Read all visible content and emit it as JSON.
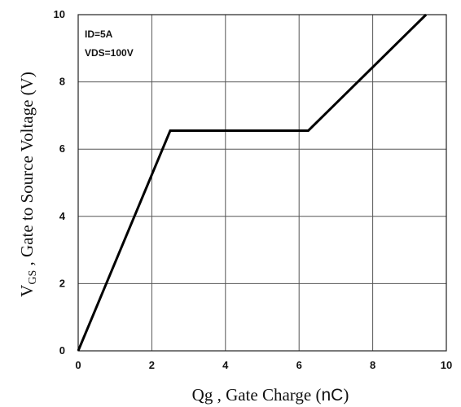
{
  "chart_data": {
    "type": "line",
    "xlabel": {
      "main": "Qg , Gate Charge (",
      "unit": "nC",
      "close": ")"
    },
    "ylabel": {
      "prefix": "V",
      "subscript": "GS",
      "rest": " , Gate to Source Voltage (V)"
    },
    "xlim": [
      0,
      10
    ],
    "ylim": [
      0,
      10
    ],
    "xticks": [
      "0",
      "2",
      "4",
      "6",
      "8",
      "10"
    ],
    "yticks": [
      "0",
      "2",
      "4",
      "6",
      "8",
      "10"
    ],
    "grid": true,
    "annotations": [
      "ID=5A",
      "VDS=100V"
    ],
    "series": [
      {
        "x": [
          0,
          2.5,
          6.25,
          9.45
        ],
        "y": [
          0,
          6.55,
          6.55,
          10
        ]
      }
    ]
  }
}
